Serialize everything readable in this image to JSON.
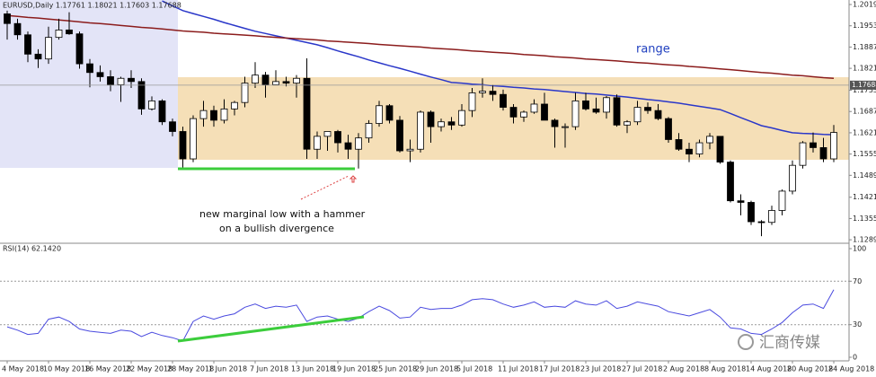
{
  "chart_data": [
    {
      "type": "candlestick",
      "title": "EURUSD,Daily  1.17761 1.18021 1.17603 1.17688",
      "open": [
        1.199,
        1.196,
        1.1925,
        1.1865,
        1.185,
        1.1917,
        1.194,
        1.1928,
        1.1835,
        1.1808,
        1.1795,
        1.177,
        1.179,
        1.178,
        1.1695,
        1.172,
        1.1655,
        1.1625,
        1.154,
        1.1665,
        1.169,
        1.166,
        1.1695,
        1.1715,
        1.1775,
        1.18,
        1.177,
        1.178,
        1.1775,
        1.179,
        1.157,
        1.161,
        1.1625,
        1.159,
        1.157,
        1.1605,
        1.165,
        1.1705,
        1.166,
        1.1565,
        1.157,
        1.1685,
        1.164,
        1.1655,
        1.1645,
        1.169,
        1.1745,
        1.175,
        1.174,
        1.17,
        1.167,
        1.1685,
        1.171,
        1.166,
        1.164,
        1.164,
        1.172,
        1.1695,
        1.1685,
        1.173,
        1.1645,
        1.1655,
        1.17,
        1.169,
        1.1665,
        1.16,
        1.157,
        1.1555,
        1.159,
        1.161,
        1.153,
        1.141,
        1.1405,
        1.1345,
        1.1343,
        1.138,
        1.144,
        1.152,
        1.159,
        1.1575,
        1.154
      ],
      "high": [
        1.2,
        1.1975,
        1.1935,
        1.188,
        1.195,
        1.1975,
        1.1995,
        1.1935,
        1.185,
        1.183,
        1.1815,
        1.1795,
        1.1815,
        1.179,
        1.1734,
        1.1725,
        1.1665,
        1.164,
        1.1675,
        1.172,
        1.1705,
        1.1725,
        1.172,
        1.1795,
        1.184,
        1.181,
        1.1815,
        1.1795,
        1.18,
        1.1852,
        1.1625,
        1.1625,
        1.163,
        1.1615,
        1.162,
        1.166,
        1.172,
        1.171,
        1.1673,
        1.16,
        1.169,
        1.169,
        1.1665,
        1.167,
        1.171,
        1.176,
        1.179,
        1.177,
        1.1755,
        1.171,
        1.169,
        1.1725,
        1.1745,
        1.1665,
        1.165,
        1.1745,
        1.1745,
        1.173,
        1.1735,
        1.174,
        1.166,
        1.172,
        1.1715,
        1.171,
        1.167,
        1.162,
        1.159,
        1.16,
        1.162,
        1.161,
        1.1535,
        1.143,
        1.141,
        1.135,
        1.1395,
        1.1445,
        1.1535,
        1.1595,
        1.1622,
        1.1605,
        1.1645
      ],
      "low": [
        1.191,
        1.191,
        1.184,
        1.1822,
        1.1835,
        1.191,
        1.1925,
        1.182,
        1.1762,
        1.178,
        1.175,
        1.1717,
        1.176,
        1.1677,
        1.169,
        1.1645,
        1.161,
        1.151,
        1.153,
        1.164,
        1.164,
        1.165,
        1.1675,
        1.17,
        1.176,
        1.173,
        1.177,
        1.1765,
        1.173,
        1.154,
        1.154,
        1.1565,
        1.156,
        1.154,
        1.151,
        1.159,
        1.164,
        1.165,
        1.156,
        1.153,
        1.156,
        1.159,
        1.1625,
        1.163,
        1.164,
        1.167,
        1.173,
        1.172,
        1.169,
        1.165,
        1.1655,
        1.168,
        1.166,
        1.1575,
        1.1575,
        1.163,
        1.169,
        1.168,
        1.1665,
        1.164,
        1.162,
        1.1645,
        1.168,
        1.166,
        1.159,
        1.1565,
        1.153,
        1.1545,
        1.157,
        1.1525,
        1.1405,
        1.1365,
        1.1335,
        1.13,
        1.1335,
        1.1365,
        1.143,
        1.151,
        1.156,
        1.153,
        1.153
      ],
      "close": [
        1.196,
        1.1925,
        1.1865,
        1.185,
        1.1917,
        1.194,
        1.1928,
        1.1835,
        1.1808,
        1.1795,
        1.177,
        1.179,
        1.178,
        1.1695,
        1.172,
        1.1655,
        1.1625,
        1.154,
        1.1665,
        1.169,
        1.166,
        1.1695,
        1.1715,
        1.1775,
        1.18,
        1.177,
        1.178,
        1.1775,
        1.179,
        1.157,
        1.161,
        1.1625,
        1.159,
        1.157,
        1.1605,
        1.165,
        1.1705,
        1.166,
        1.1565,
        1.157,
        1.1685,
        1.164,
        1.1655,
        1.1645,
        1.169,
        1.1745,
        1.175,
        1.174,
        1.17,
        1.167,
        1.1685,
        1.171,
        1.166,
        1.164,
        1.164,
        1.172,
        1.1695,
        1.1685,
        1.173,
        1.1645,
        1.1655,
        1.17,
        1.169,
        1.1665,
        1.16,
        1.157,
        1.1555,
        1.159,
        1.161,
        1.153,
        1.141,
        1.1405,
        1.1345,
        1.1343,
        1.138,
        1.144,
        1.152,
        1.159,
        1.1575,
        1.154,
        1.1622
      ],
      "up_color": "#ffffff",
      "down_color": "#000000",
      "series": [
        {
          "color": "#2a37c9",
          "values": [
            null,
            null,
            null,
            null,
            null,
            null,
            null,
            null,
            null,
            null,
            null,
            null,
            null,
            null,
            null,
            1.203,
            1.2015,
            1.2,
            1.1991,
            1.1982,
            1.1973,
            1.1963,
            1.1954,
            1.1945,
            1.1936,
            1.1929,
            1.1922,
            1.1915,
            1.1908,
            1.1901,
            1.1894,
            1.1885,
            1.1875,
            1.1866,
            1.1857,
            1.1847,
            1.1838,
            1.1829,
            1.1821,
            1.1812,
            1.1803,
            1.1794,
            1.1786,
            1.1777,
            1.1775,
            1.1772,
            1.177,
            1.1767,
            1.1765,
            1.1762,
            1.176,
            1.1757,
            1.1755,
            1.1752,
            1.1749,
            1.1746,
            1.1743,
            1.1741,
            1.1738,
            1.1735,
            1.1732,
            1.1728,
            1.1724,
            1.1721,
            1.1717,
            1.1713,
            1.1708,
            1.1703,
            1.1698,
            1.1693,
            1.1681,
            1.1668,
            1.1656,
            1.1643,
            1.1636,
            1.1628,
            1.1621,
            1.1619,
            1.1618,
            1.1616,
            1.1615
          ]
        },
        {
          "color": "#8b1c1c",
          "values": [
            1.1985,
            1.1982,
            1.1979,
            1.1977,
            1.1974,
            1.1971,
            1.1968,
            1.1965,
            1.1962,
            1.196,
            1.1957,
            1.1954,
            1.1951,
            1.1948,
            1.1946,
            1.1943,
            1.194,
            1.1937,
            1.1935,
            1.1933,
            1.193,
            1.1928,
            1.1926,
            1.1924,
            1.1922,
            1.1919,
            1.1917,
            1.1915,
            1.1913,
            1.1911,
            1.1909,
            1.1906,
            1.1904,
            1.1902,
            1.19,
            1.1898,
            1.1895,
            1.1893,
            1.1891,
            1.1889,
            1.1887,
            1.1884,
            1.1882,
            1.188,
            1.1878,
            1.1875,
            1.1873,
            1.1871,
            1.1869,
            1.1867,
            1.1864,
            1.1862,
            1.186,
            1.1857,
            1.1855,
            1.1853,
            1.185,
            1.1848,
            1.1846,
            1.1844,
            1.1841,
            1.1839,
            1.1837,
            1.1834,
            1.1832,
            1.183,
            1.1827,
            1.1825,
            1.1822,
            1.1819,
            1.1817,
            1.1814,
            1.1811,
            1.1808,
            1.1806,
            1.1803,
            1.18,
            1.1798,
            1.1795,
            1.1792,
            1.179
          ]
        }
      ],
      "last_price": 1.17688,
      "ylim": [
        1.1281,
        1.2033
      ],
      "yticks": [
        {
          "value": 1.2019,
          "label": "1.20190"
        },
        {
          "value": 1.1953,
          "label": "1.19530"
        },
        {
          "value": 1.1887,
          "label": "1.18870"
        },
        {
          "value": 1.1821,
          "label": "1.18210"
        },
        {
          "value": 1.1753,
          "label": "1.17530"
        },
        {
          "value": 1.1687,
          "label": "1.16870"
        },
        {
          "value": 1.1621,
          "label": "1.16210"
        },
        {
          "value": 1.1555,
          "label": "1.15550"
        },
        {
          "value": 1.1489,
          "label": "1.14890"
        },
        {
          "value": 1.1421,
          "label": "1.14210"
        },
        {
          "value": 1.1355,
          "label": "1.13550"
        },
        {
          "value": 1.1289,
          "label": "1.12890"
        }
      ],
      "annotations": [
        "range",
        "new marginal low with a hammer",
        "on a bullish divergence"
      ]
    },
    {
      "type": "line",
      "title": "RSI(14) 62.1420",
      "categories": [
        "4 May 2018",
        null,
        null,
        null,
        "10 May 2018",
        null,
        null,
        null,
        "16 May 2018",
        null,
        null,
        null,
        "22 May 2018",
        null,
        null,
        null,
        "28 May 2018",
        null,
        null,
        null,
        "1 Jun 2018",
        null,
        null,
        null,
        "7 Jun 2018",
        null,
        null,
        null,
        "13 Jun 2018",
        null,
        null,
        null,
        "19 Jun 2018",
        null,
        null,
        null,
        "25 Jun 2018",
        null,
        null,
        null,
        "29 Jun 2018",
        null,
        null,
        null,
        "5 Jul 2018",
        null,
        null,
        null,
        "11 Jul 2018",
        null,
        null,
        null,
        "17 Jul 2018",
        null,
        null,
        null,
        "23 Jul 2018",
        null,
        null,
        null,
        "27 Jul 2018",
        null,
        null,
        null,
        "2 Aug 2018",
        null,
        null,
        null,
        "8 Aug 2018",
        null,
        null,
        null,
        "14 Aug 2018",
        null,
        null,
        null,
        "20 Aug 2018",
        null,
        null,
        null,
        "24 Aug 2018"
      ],
      "series": [
        {
          "color": "#4a4adf",
          "values": [
            28,
            25,
            21,
            22,
            35,
            37,
            33,
            26,
            24,
            23,
            22,
            25,
            24,
            19,
            23,
            20,
            18,
            15,
            33,
            38,
            35,
            38,
            40,
            46,
            49,
            45,
            47,
            46,
            48,
            33,
            37,
            38,
            35,
            33,
            36,
            42,
            47,
            43,
            36,
            37,
            46,
            44,
            45,
            45,
            48,
            53,
            54,
            53,
            49,
            46,
            48,
            51,
            46,
            47,
            46,
            52,
            49,
            48,
            52,
            45,
            47,
            51,
            49,
            47,
            42,
            40,
            38,
            41,
            44,
            37,
            27,
            26,
            22,
            21,
            26,
            32,
            41,
            48,
            49,
            45,
            62.142
          ]
        }
      ],
      "ylim": [
        0,
        100
      ],
      "yticks": [
        100,
        70,
        30,
        0
      ],
      "levels": [
        70,
        30
      ]
    }
  ],
  "watermark": "汇商传媒"
}
